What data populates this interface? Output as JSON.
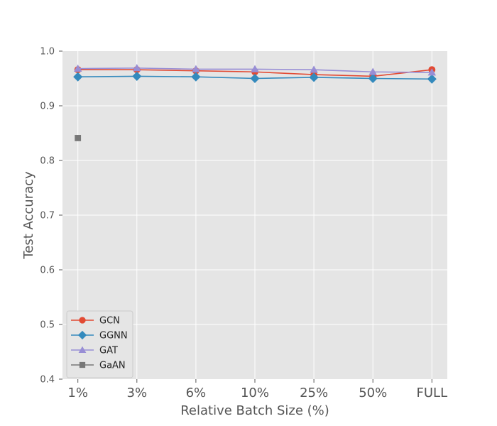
{
  "chart_data": {
    "type": "line",
    "xlabel": "Relative Batch Size (%)",
    "ylabel": "Test Accuracy",
    "categories": [
      "1%",
      "3%",
      "6%",
      "10%",
      "25%",
      "50%",
      "FULL"
    ],
    "ylim": [
      0.4,
      1.0
    ],
    "yticks": [
      0.4,
      0.5,
      0.6,
      0.7,
      0.8,
      0.9,
      1.0
    ],
    "ytick_labels": [
      "0.4",
      "0.5",
      "0.6",
      "0.7",
      "0.8",
      "0.9",
      "1.0"
    ],
    "grid": true,
    "legend_position": "bottom-left",
    "series": [
      {
        "name": "GCN",
        "color": "#E24A33",
        "marker": "circle",
        "values": [
          0.966,
          0.966,
          0.964,
          0.962,
          0.957,
          0.954,
          0.966
        ]
      },
      {
        "name": "GGNN",
        "color": "#348ABD",
        "marker": "diamond",
        "values": [
          0.953,
          0.954,
          0.953,
          0.95,
          0.952,
          0.95,
          0.949
        ]
      },
      {
        "name": "GAT",
        "color": "#988ED5",
        "marker": "triangle",
        "values": [
          0.968,
          0.969,
          0.967,
          0.967,
          0.966,
          0.962,
          0.961
        ]
      },
      {
        "name": "GaAN",
        "color": "#777777",
        "marker": "square",
        "values": [
          0.841,
          null,
          null,
          null,
          null,
          null,
          null
        ]
      }
    ]
  }
}
